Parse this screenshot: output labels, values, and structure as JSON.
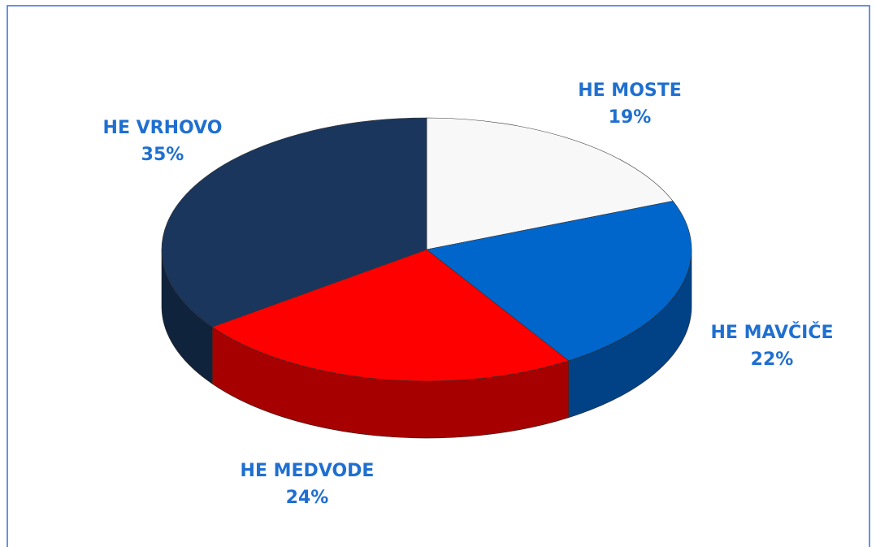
{
  "chart_data": {
    "type": "pie",
    "categories": [
      "HE MOSTE",
      "HE MAVČIČE",
      "HE MEDVODE",
      "HE VRHOVO"
    ],
    "values": [
      19,
      22,
      24,
      35
    ],
    "value_labels": [
      "19%",
      "22%",
      "24%",
      "35%"
    ],
    "colors": [
      "#f8f8f8",
      "#0066cc",
      "#ff0000",
      "#1a365d"
    ]
  }
}
